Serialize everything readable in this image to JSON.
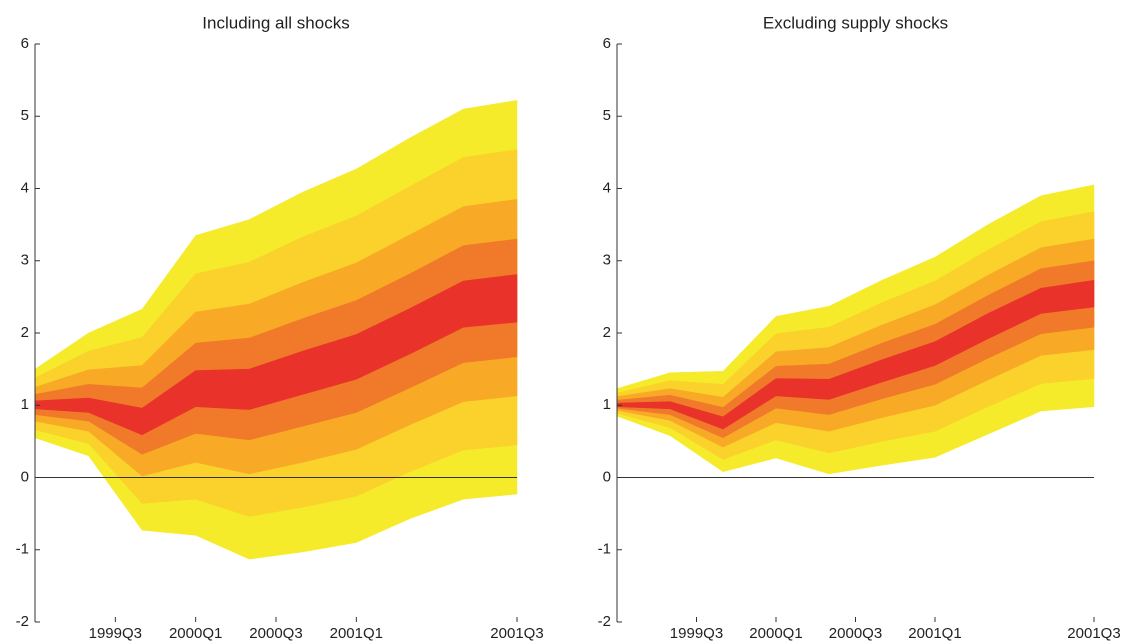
{
  "chart_data": [
    {
      "type": "fan",
      "title": "Including all shocks",
      "x": [
        0,
        1,
        2,
        3,
        4,
        5,
        6,
        7,
        8,
        9
      ],
      "xlim": [
        0,
        9
      ],
      "xticks": [
        {
          "value": 1.5,
          "label": "1999Q3"
        },
        {
          "value": 3,
          "label": "2000Q1"
        },
        {
          "value": 4.5,
          "label": "2000Q3"
        },
        {
          "value": 6,
          "label": "2001Q1"
        },
        {
          "value": 9,
          "label": "2001Q3"
        }
      ],
      "ylim": [
        -2,
        6
      ],
      "yticks": [
        -2,
        -1,
        0,
        1,
        2,
        3,
        4,
        5,
        6
      ],
      "bands": [
        {
          "color": "#f6eb2b",
          "upper": [
            1.5,
            2.0,
            2.33,
            3.35,
            3.57,
            3.95,
            4.27,
            4.7,
            5.1,
            5.22
          ],
          "lower": [
            0.55,
            0.3,
            -0.73,
            -0.8,
            -1.13,
            -1.03,
            -0.9,
            -0.57,
            -0.3,
            -0.23
          ]
        },
        {
          "color": "#fbd22b",
          "upper": [
            1.38,
            1.75,
            1.94,
            2.82,
            2.98,
            3.33,
            3.62,
            4.03,
            4.43,
            4.54
          ],
          "lower": [
            0.66,
            0.47,
            -0.36,
            -0.3,
            -0.54,
            -0.41,
            -0.26,
            0.08,
            0.38,
            0.45
          ]
        },
        {
          "color": "#f8aa26",
          "upper": [
            1.25,
            1.49,
            1.55,
            2.29,
            2.4,
            2.7,
            2.97,
            3.36,
            3.75,
            3.85
          ],
          "lower": [
            0.78,
            0.64,
            0.02,
            0.21,
            0.05,
            0.21,
            0.39,
            0.73,
            1.05,
            1.13
          ]
        },
        {
          "color": "#f07a2a",
          "upper": [
            1.15,
            1.29,
            1.24,
            1.86,
            1.93,
            2.2,
            2.45,
            2.82,
            3.21,
            3.3
          ],
          "lower": [
            0.87,
            0.78,
            0.32,
            0.61,
            0.52,
            0.71,
            0.9,
            1.24,
            1.59,
            1.67
          ]
        },
        {
          "color": "#e8322a",
          "upper": [
            1.06,
            1.1,
            0.96,
            1.48,
            1.5,
            1.75,
            1.98,
            2.34,
            2.72,
            2.81
          ],
          "lower": [
            0.95,
            0.9,
            0.59,
            0.98,
            0.94,
            1.15,
            1.36,
            1.71,
            2.08,
            2.15
          ]
        }
      ]
    },
    {
      "type": "fan",
      "title": "Excluding supply shocks",
      "x": [
        0,
        1,
        2,
        3,
        4,
        5,
        6,
        7,
        8,
        9
      ],
      "xlim": [
        0,
        9
      ],
      "xticks": [
        {
          "value": 1.5,
          "label": "1999Q3"
        },
        {
          "value": 3,
          "label": "2000Q1"
        },
        {
          "value": 4.5,
          "label": "2000Q3"
        },
        {
          "value": 6,
          "label": "2001Q1"
        },
        {
          "value": 9,
          "label": "2001Q3"
        }
      ],
      "ylim": [
        -2,
        6
      ],
      "yticks": [
        -2,
        -1,
        0,
        1,
        2,
        3,
        4,
        5,
        6
      ],
      "bands": [
        {
          "color": "#f6eb2b",
          "upper": [
            1.23,
            1.45,
            1.47,
            2.23,
            2.37,
            2.73,
            3.05,
            3.5,
            3.9,
            4.05
          ],
          "lower": [
            0.85,
            0.58,
            0.08,
            0.27,
            0.05,
            0.17,
            0.28,
            0.6,
            0.92,
            0.98
          ]
        },
        {
          "color": "#fbd22b",
          "upper": [
            1.17,
            1.34,
            1.29,
            1.99,
            2.08,
            2.42,
            2.72,
            3.15,
            3.54,
            3.68
          ],
          "lower": [
            0.89,
            0.69,
            0.25,
            0.52,
            0.34,
            0.5,
            0.64,
            0.98,
            1.3,
            1.37
          ]
        },
        {
          "color": "#f8aa26",
          "upper": [
            1.12,
            1.23,
            1.11,
            1.74,
            1.8,
            2.11,
            2.39,
            2.8,
            3.18,
            3.3
          ],
          "lower": [
            0.93,
            0.79,
            0.42,
            0.76,
            0.64,
            0.83,
            1.0,
            1.35,
            1.69,
            1.77
          ]
        },
        {
          "color": "#f07a2a",
          "upper": [
            1.07,
            1.14,
            0.97,
            1.54,
            1.57,
            1.86,
            2.12,
            2.52,
            2.89,
            3.0
          ],
          "lower": [
            0.96,
            0.87,
            0.55,
            0.96,
            0.87,
            1.09,
            1.29,
            1.65,
            1.99,
            2.08
          ]
        },
        {
          "color": "#e8322a",
          "upper": [
            1.03,
            1.05,
            0.84,
            1.37,
            1.36,
            1.63,
            1.88,
            2.27,
            2.62,
            2.73
          ],
          "lower": [
            0.98,
            0.95,
            0.67,
            1.13,
            1.08,
            1.32,
            1.55,
            1.92,
            2.27,
            2.36
          ]
        }
      ]
    }
  ]
}
